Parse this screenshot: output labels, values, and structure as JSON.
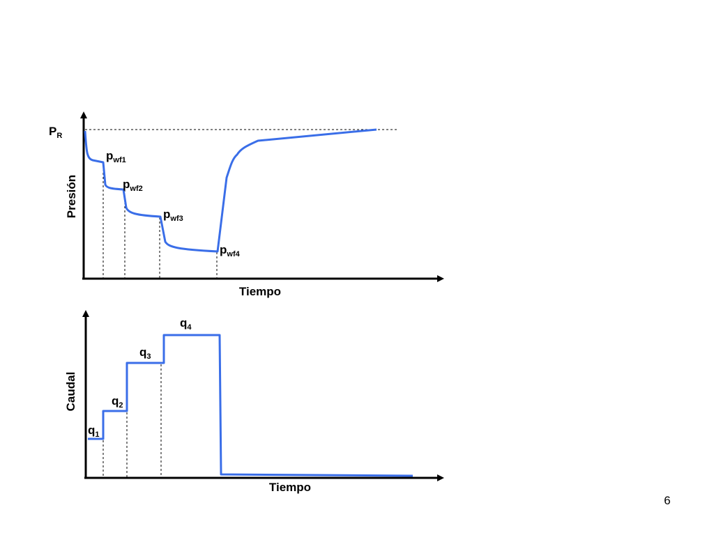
{
  "pressure_chart": {
    "y_label": "Presión",
    "x_label": "Tiempo",
    "pr_label": {
      "main": "P",
      "sub": "R"
    },
    "annotations": [
      {
        "main": "p",
        "sub": "wf1"
      },
      {
        "main": "p",
        "sub": "wf2"
      },
      {
        "main": "p",
        "sub": "wf3"
      },
      {
        "main": "p",
        "sub": "wf4"
      }
    ]
  },
  "rate_chart": {
    "y_label": "Caudal",
    "x_label": "Tiempo",
    "annotations": [
      {
        "main": "q",
        "sub": "1"
      },
      {
        "main": "q",
        "sub": "2"
      },
      {
        "main": "q",
        "sub": "3"
      },
      {
        "main": "q",
        "sub": "4"
      }
    ]
  },
  "page_number": "6"
}
